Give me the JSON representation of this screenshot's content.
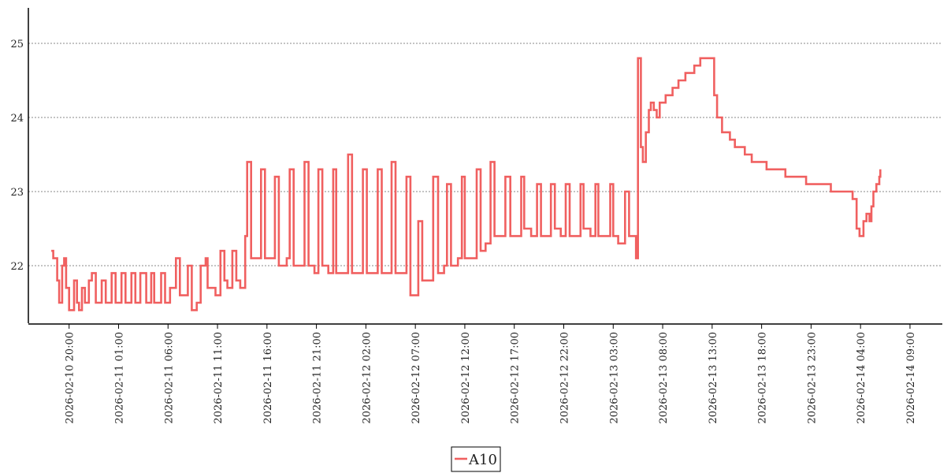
{
  "chart_data": {
    "type": "line",
    "line_style": "step",
    "grid": "y-dashed",
    "legend_position": "bottom-center",
    "ylim": [
      21.2,
      25.5
    ],
    "yticks": [
      22,
      23,
      24,
      25
    ],
    "xticks": [
      {
        "t": 20,
        "label": "2026-02-10  20:00"
      },
      {
        "t": 25,
        "label": "2026-02-11  01:00"
      },
      {
        "t": 30,
        "label": "2026-02-11  06:00"
      },
      {
        "t": 35,
        "label": "2026-02-11  11:00"
      },
      {
        "t": 40,
        "label": "2026-02-11  16:00"
      },
      {
        "t": 45,
        "label": "2026-02-11  21:00"
      },
      {
        "t": 50,
        "label": "2026-02-12  02:00"
      },
      {
        "t": 55,
        "label": "2026-02-12  07:00"
      },
      {
        "t": 60,
        "label": "2026-02-12  12:00"
      },
      {
        "t": 65,
        "label": "2026-02-12  17:00"
      },
      {
        "t": 70,
        "label": "2026-02-12  22:00"
      },
      {
        "t": 75,
        "label": "2026-02-13  03:00"
      },
      {
        "t": 80,
        "label": "2026-02-13  08:00"
      },
      {
        "t": 85,
        "label": "2026-02-13  13:00"
      },
      {
        "t": 90,
        "label": "2026-02-13  18:00"
      },
      {
        "t": 95,
        "label": "2026-02-13  23:00"
      },
      {
        "t": 100,
        "label": "2026-02-14  04:00"
      },
      {
        "t": 105,
        "label": "2026-02-14  09:00"
      }
    ],
    "series": [
      {
        "name": "A10",
        "color": "#f06060",
        "points": [
          [
            18.2,
            22.2
          ],
          [
            18.4,
            22.1
          ],
          [
            18.8,
            21.8
          ],
          [
            19.0,
            21.5
          ],
          [
            19.3,
            22.0
          ],
          [
            19.5,
            22.1
          ],
          [
            19.7,
            21.7
          ],
          [
            20.0,
            21.4
          ],
          [
            20.5,
            21.8
          ],
          [
            20.8,
            21.5
          ],
          [
            21.0,
            21.4
          ],
          [
            21.3,
            21.7
          ],
          [
            21.6,
            21.5
          ],
          [
            22.0,
            21.8
          ],
          [
            22.3,
            21.9
          ],
          [
            22.7,
            21.5
          ],
          [
            23.3,
            21.8
          ],
          [
            23.7,
            21.5
          ],
          [
            24.3,
            21.9
          ],
          [
            24.7,
            21.5
          ],
          [
            25.3,
            21.9
          ],
          [
            25.7,
            21.5
          ],
          [
            26.3,
            21.9
          ],
          [
            26.7,
            21.5
          ],
          [
            27.2,
            21.9
          ],
          [
            27.8,
            21.5
          ],
          [
            28.3,
            21.9
          ],
          [
            28.6,
            21.5
          ],
          [
            29.3,
            21.9
          ],
          [
            29.7,
            21.5
          ],
          [
            30.2,
            21.7
          ],
          [
            30.8,
            22.1
          ],
          [
            31.2,
            21.6
          ],
          [
            32.0,
            22.0
          ],
          [
            32.4,
            21.4
          ],
          [
            32.9,
            21.5
          ],
          [
            33.3,
            22.0
          ],
          [
            33.8,
            22.1
          ],
          [
            34.0,
            21.7
          ],
          [
            34.8,
            21.6
          ],
          [
            35.3,
            22.2
          ],
          [
            35.7,
            21.8
          ],
          [
            36.0,
            21.7
          ],
          [
            36.5,
            22.2
          ],
          [
            36.9,
            21.8
          ],
          [
            37.3,
            21.7
          ],
          [
            37.8,
            22.4
          ],
          [
            38.0,
            23.4
          ],
          [
            38.4,
            22.1
          ],
          [
            39.0,
            22.1
          ],
          [
            39.4,
            23.3
          ],
          [
            39.8,
            22.1
          ],
          [
            40.2,
            22.1
          ],
          [
            40.8,
            23.2
          ],
          [
            41.2,
            22.0
          ],
          [
            42.0,
            22.1
          ],
          [
            42.3,
            23.3
          ],
          [
            42.7,
            22.0
          ],
          [
            43.2,
            22.0
          ],
          [
            43.8,
            23.4
          ],
          [
            44.2,
            22.0
          ],
          [
            44.8,
            21.9
          ],
          [
            45.2,
            23.3
          ],
          [
            45.6,
            22.0
          ],
          [
            46.2,
            21.9
          ],
          [
            46.7,
            23.3
          ],
          [
            47.0,
            21.9
          ],
          [
            47.7,
            21.9
          ],
          [
            48.2,
            23.5
          ],
          [
            48.6,
            21.9
          ],
          [
            49.2,
            21.9
          ],
          [
            49.7,
            23.3
          ],
          [
            50.1,
            21.9
          ],
          [
            50.8,
            21.9
          ],
          [
            51.2,
            23.3
          ],
          [
            51.6,
            21.9
          ],
          [
            52.3,
            21.9
          ],
          [
            52.6,
            23.4
          ],
          [
            53.0,
            21.9
          ],
          [
            53.7,
            21.9
          ],
          [
            54.1,
            23.2
          ],
          [
            54.5,
            21.6
          ],
          [
            55.2,
            21.6
          ],
          [
            55.3,
            22.6
          ],
          [
            55.7,
            21.8
          ],
          [
            56.3,
            21.8
          ],
          [
            56.8,
            23.2
          ],
          [
            57.3,
            21.9
          ],
          [
            57.9,
            22.0
          ],
          [
            58.2,
            23.1
          ],
          [
            58.6,
            22.0
          ],
          [
            59.3,
            22.1
          ],
          [
            59.7,
            23.2
          ],
          [
            60.0,
            22.1
          ],
          [
            60.8,
            22.1
          ],
          [
            61.2,
            23.3
          ],
          [
            61.6,
            22.2
          ],
          [
            62.1,
            22.3
          ],
          [
            62.6,
            23.4
          ],
          [
            63.0,
            22.4
          ],
          [
            63.8,
            22.4
          ],
          [
            64.1,
            23.2
          ],
          [
            64.6,
            22.4
          ],
          [
            65.3,
            22.4
          ],
          [
            65.7,
            23.2
          ],
          [
            66.0,
            22.5
          ],
          [
            66.7,
            22.4
          ],
          [
            67.3,
            23.1
          ],
          [
            67.7,
            22.4
          ],
          [
            68.3,
            22.4
          ],
          [
            68.7,
            23.1
          ],
          [
            69.1,
            22.5
          ],
          [
            69.7,
            22.4
          ],
          [
            70.2,
            23.1
          ],
          [
            70.6,
            22.4
          ],
          [
            71.3,
            22.4
          ],
          [
            71.7,
            23.1
          ],
          [
            72.0,
            22.5
          ],
          [
            72.7,
            22.4
          ],
          [
            73.2,
            23.1
          ],
          [
            73.5,
            22.4
          ],
          [
            74.2,
            22.4
          ],
          [
            74.7,
            23.1
          ],
          [
            75.0,
            22.4
          ],
          [
            75.5,
            22.3
          ],
          [
            76.2,
            23.0
          ],
          [
            76.6,
            22.4
          ],
          [
            77.3,
            22.1
          ],
          [
            77.5,
            24.8
          ],
          [
            77.8,
            23.6
          ],
          [
            78.0,
            23.4
          ],
          [
            78.3,
            23.8
          ],
          [
            78.6,
            24.1
          ],
          [
            78.8,
            24.2
          ],
          [
            79.1,
            24.1
          ],
          [
            79.4,
            24.0
          ],
          [
            79.7,
            24.2
          ],
          [
            80.3,
            24.3
          ],
          [
            81.0,
            24.4
          ],
          [
            81.6,
            24.5
          ],
          [
            82.3,
            24.6
          ],
          [
            83.2,
            24.7
          ],
          [
            83.8,
            24.8
          ],
          [
            84.7,
            24.8
          ],
          [
            85.2,
            24.3
          ],
          [
            85.5,
            24.0
          ],
          [
            86.0,
            23.8
          ],
          [
            86.8,
            23.7
          ],
          [
            87.3,
            23.6
          ],
          [
            88.3,
            23.5
          ],
          [
            89.0,
            23.4
          ],
          [
            90.5,
            23.3
          ],
          [
            92.4,
            23.2
          ],
          [
            94.5,
            23.1
          ],
          [
            97.0,
            23.0
          ],
          [
            99.2,
            22.9
          ],
          [
            99.6,
            22.5
          ],
          [
            99.9,
            22.4
          ],
          [
            100.3,
            22.6
          ],
          [
            100.6,
            22.7
          ],
          [
            100.9,
            22.6
          ],
          [
            101.1,
            22.8
          ],
          [
            101.3,
            23.0
          ],
          [
            101.6,
            23.1
          ],
          [
            101.9,
            23.2
          ],
          [
            102.0,
            23.3
          ]
        ]
      }
    ]
  }
}
